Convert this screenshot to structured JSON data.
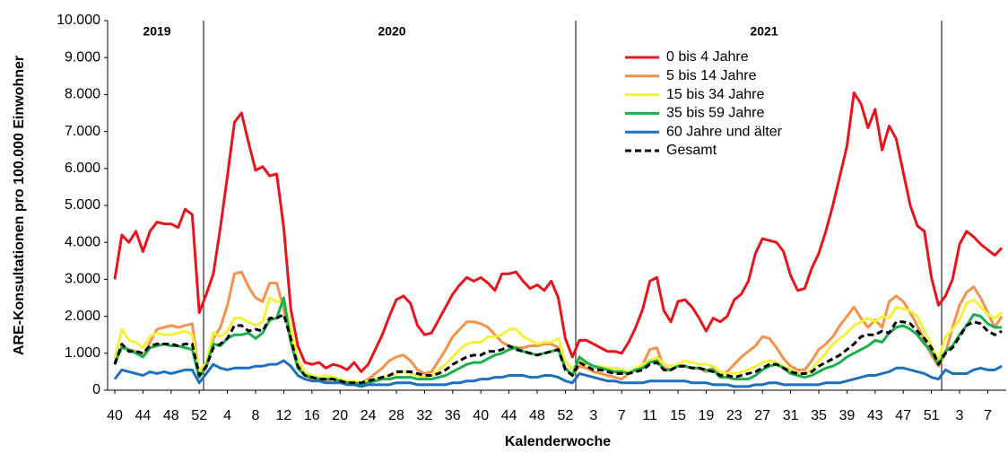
{
  "chart_data": {
    "type": "line",
    "y_label": "ARE-Konsultationen pro 100.000 Einwohner",
    "x_label": "Kalenderwoche",
    "annotations": [
      "2019",
      "2020",
      "2021"
    ],
    "categories": [
      "40",
      null,
      null,
      null,
      "44",
      null,
      null,
      null,
      "48",
      null,
      null,
      null,
      "52",
      null,
      null,
      null,
      "4",
      null,
      null,
      null,
      "8",
      null,
      null,
      null,
      "12",
      null,
      null,
      null,
      "16",
      null,
      null,
      null,
      "20",
      null,
      null,
      null,
      "24",
      null,
      null,
      null,
      "28",
      null,
      null,
      null,
      "32",
      null,
      null,
      null,
      "36",
      null,
      null,
      null,
      "40",
      null,
      null,
      null,
      "44",
      null,
      null,
      null,
      "48",
      null,
      null,
      null,
      "52",
      null,
      null,
      null,
      "3",
      null,
      null,
      null,
      "7",
      null,
      null,
      null,
      "11",
      null,
      null,
      null,
      "15",
      null,
      null,
      null,
      "19",
      null,
      null,
      null,
      "23",
      null,
      null,
      null,
      "27",
      null,
      null,
      null,
      "31",
      null,
      null,
      null,
      "35",
      null,
      null,
      null,
      "39",
      null,
      null,
      null,
      "43",
      null,
      null,
      null,
      "47",
      null,
      null,
      null,
      "51",
      null,
      null,
      null,
      "3",
      null,
      null,
      null,
      "7",
      null,
      null
    ],
    "ylim": [
      0,
      10000
    ],
    "yticks": [
      0,
      {
        "value": 1000,
        "label": "1.000"
      },
      {
        "value": 2000,
        "label": "2.000"
      },
      {
        "value": 3000,
        "label": "3.000"
      },
      {
        "value": 4000,
        "label": "4.000"
      },
      {
        "value": 5000,
        "label": "5.000"
      },
      {
        "value": 6000,
        "label": "6.000"
      },
      {
        "value": 7000,
        "label": "7.000"
      },
      {
        "value": 8000,
        "label": "8.000"
      },
      {
        "value": 9000,
        "label": "9.000"
      },
      {
        "value": 10000,
        "label": "10.000"
      }
    ],
    "grid": false,
    "legend": "upper right",
    "series": [
      {
        "name": "0 bis 4 Jahre",
        "color": "#e8141c",
        "values": [
          3000,
          4200,
          4000,
          4300,
          3750,
          4300,
          4550,
          4500,
          4500,
          4400,
          4900,
          4750,
          2100,
          2600,
          3150,
          4400,
          5800,
          7250,
          7500,
          6700,
          5950,
          6050,
          5800,
          5850,
          4400,
          2200,
          1200,
          750,
          700,
          750,
          600,
          700,
          650,
          550,
          750,
          500,
          700,
          1100,
          1500,
          2000,
          2450,
          2550,
          2350,
          1750,
          1500,
          1550,
          1900,
          2250,
          2600,
          2850,
          3050,
          2950,
          3050,
          2900,
          2700,
          3150,
          3150,
          3200,
          2950,
          2750,
          2850,
          2700,
          2950,
          2500,
          1400,
          900,
          1350,
          1350,
          1250,
          1150,
          1050,
          1050,
          1000,
          1300,
          1700,
          2200,
          2950,
          3050,
          2150,
          1850,
          2400,
          2450,
          2250,
          1950,
          1600,
          1950,
          1850,
          2000,
          2450,
          2600,
          2950,
          3700,
          4100,
          4050,
          4000,
          3750,
          3100,
          2700,
          2750,
          3300,
          3700,
          4300,
          5000,
          5800,
          6600,
          8050,
          7750,
          7100,
          7600,
          6500,
          7150,
          6800,
          5900,
          5000,
          4450,
          4300,
          3050,
          2300,
          2550,
          3000,
          3950,
          4300,
          4150,
          3950,
          3800,
          3650,
          3850
        ]
      },
      {
        "name": "5 bis 14 Jahre",
        "color": "#f4914a",
        "values": [
          700,
          1200,
          1100,
          1050,
          900,
          1300,
          1650,
          1700,
          1750,
          1700,
          1750,
          1800,
          400,
          600,
          1400,
          1700,
          2300,
          3150,
          3200,
          2800,
          2500,
          2400,
          2900,
          2900,
          2200,
          1300,
          650,
          400,
          300,
          250,
          250,
          300,
          200,
          200,
          150,
          200,
          300,
          450,
          600,
          800,
          900,
          950,
          800,
          550,
          450,
          500,
          800,
          1100,
          1450,
          1650,
          1850,
          1850,
          1800,
          1700,
          1500,
          1300,
          1200,
          1150,
          1150,
          1200,
          1200,
          1250,
          1250,
          1150,
          600,
          400,
          650,
          600,
          500,
          450,
          400,
          350,
          300,
          450,
          550,
          700,
          1100,
          1150,
          600,
          550,
          700,
          650,
          600,
          600,
          500,
          600,
          450,
          500,
          700,
          900,
          1050,
          1200,
          1450,
          1400,
          1150,
          850,
          650,
          550,
          550,
          800,
          1100,
          1250,
          1450,
          1750,
          2000,
          2250,
          1950,
          1700,
          1900,
          1700,
          2400,
          2550,
          2400,
          2100,
          1750,
          1350,
          950,
          650,
          1000,
          1700,
          2300,
          2650,
          2800,
          2500,
          2100,
          1700,
          2000
        ]
      },
      {
        "name": "15 bis 34 Jahre",
        "color": "#f2f23c",
        "values": [
          850,
          1650,
          1350,
          1300,
          1150,
          1450,
          1550,
          1500,
          1500,
          1550,
          1600,
          1500,
          500,
          750,
          1550,
          1450,
          1600,
          1950,
          1950,
          1850,
          1750,
          1850,
          2500,
          2400,
          2400,
          1700,
          800,
          500,
          400,
          350,
          400,
          350,
          300,
          250,
          250,
          200,
          250,
          300,
          350,
          400,
          450,
          500,
          450,
          400,
          350,
          400,
          550,
          700,
          900,
          1100,
          1250,
          1300,
          1300,
          1450,
          1450,
          1500,
          1650,
          1650,
          1450,
          1350,
          1250,
          1300,
          1300,
          1400,
          800,
          550,
          800,
          700,
          650,
          650,
          600,
          600,
          550,
          500,
          600,
          700,
          800,
          900,
          700,
          650,
          700,
          800,
          750,
          700,
          700,
          650,
          500,
          450,
          450,
          500,
          550,
          650,
          750,
          800,
          750,
          650,
          550,
          450,
          450,
          550,
          800,
          1000,
          1250,
          1400,
          1550,
          1750,
          1850,
          1950,
          1850,
          2000,
          1950,
          2250,
          2200,
          2150,
          2000,
          1600,
          1200,
          800,
          1450,
          1650,
          1900,
          2350,
          2450,
          2250,
          2050,
          1950,
          2100
        ]
      },
      {
        "name": "35 bis 59 Jahre",
        "color": "#1aae4f",
        "values": [
          750,
          1150,
          1100,
          1000,
          900,
          1150,
          1200,
          1250,
          1200,
          1200,
          1150,
          1100,
          350,
          650,
          1250,
          1200,
          1400,
          1500,
          1500,
          1550,
          1400,
          1550,
          1900,
          1950,
          2500,
          1300,
          600,
          400,
          350,
          300,
          300,
          300,
          250,
          200,
          200,
          150,
          200,
          250,
          300,
          300,
          350,
          350,
          350,
          300,
          300,
          300,
          350,
          400,
          500,
          600,
          700,
          750,
          750,
          850,
          950,
          1000,
          1100,
          1150,
          1050,
          1000,
          950,
          1000,
          1050,
          1100,
          600,
          400,
          900,
          750,
          650,
          600,
          550,
          500,
          500,
          450,
          550,
          600,
          750,
          800,
          550,
          550,
          650,
          650,
          600,
          600,
          550,
          550,
          350,
          350,
          300,
          300,
          300,
          400,
          550,
          650,
          700,
          600,
          450,
          400,
          350,
          400,
          500,
          600,
          650,
          750,
          900,
          1000,
          1100,
          1200,
          1350,
          1300,
          1550,
          1700,
          1750,
          1650,
          1500,
          1250,
          1050,
          700,
          1050,
          1200,
          1500,
          1750,
          2050,
          2000,
          1800,
          1700,
          1700
        ]
      },
      {
        "name": "60 Jahre und älter",
        "color": "#1f6fbf",
        "values": [
          300,
          550,
          500,
          450,
          400,
          500,
          450,
          500,
          450,
          500,
          550,
          550,
          200,
          450,
          700,
          600,
          550,
          600,
          600,
          600,
          650,
          650,
          700,
          700,
          800,
          650,
          400,
          300,
          250,
          250,
          200,
          200,
          200,
          150,
          150,
          100,
          150,
          150,
          150,
          150,
          200,
          200,
          200,
          150,
          150,
          150,
          150,
          150,
          200,
          200,
          250,
          250,
          300,
          300,
          350,
          350,
          400,
          400,
          400,
          350,
          350,
          400,
          400,
          350,
          250,
          200,
          450,
          400,
          350,
          300,
          250,
          250,
          200,
          200,
          200,
          200,
          250,
          250,
          250,
          250,
          250,
          250,
          200,
          200,
          200,
          150,
          150,
          150,
          100,
          100,
          100,
          150,
          150,
          200,
          200,
          150,
          150,
          150,
          150,
          150,
          150,
          200,
          200,
          200,
          250,
          300,
          350,
          400,
          400,
          450,
          500,
          600,
          600,
          550,
          500,
          450,
          350,
          300,
          550,
          450,
          450,
          450,
          550,
          600,
          550,
          550,
          650
        ]
      },
      {
        "name": "Gesamt",
        "color": "#000000",
        "line_style": "dashed",
        "values": [
          700,
          1250,
          1050,
          1050,
          1000,
          1200,
          1250,
          1250,
          1250,
          1200,
          1250,
          1250,
          400,
          650,
          1150,
          1250,
          1400,
          1750,
          1750,
          1600,
          1650,
          1600,
          1950,
          1950,
          2050,
          1400,
          650,
          400,
          350,
          300,
          300,
          300,
          250,
          200,
          200,
          200,
          250,
          300,
          350,
          400,
          500,
          500,
          500,
          450,
          400,
          400,
          450,
          550,
          700,
          800,
          900,
          950,
          950,
          1050,
          1050,
          1100,
          1200,
          1100,
          1050,
          1000,
          950,
          1000,
          1050,
          1100,
          550,
          400,
          750,
          650,
          550,
          550,
          500,
          450,
          450,
          450,
          500,
          550,
          700,
          750,
          550,
          550,
          650,
          650,
          600,
          600,
          550,
          500,
          400,
          400,
          350,
          400,
          450,
          500,
          600,
          700,
          700,
          600,
          500,
          450,
          450,
          500,
          650,
          750,
          850,
          950,
          1100,
          1250,
          1450,
          1500,
          1500,
          1600,
          1550,
          1850,
          1850,
          1800,
          1600,
          1400,
          1150,
          700,
          1000,
          1150,
          1450,
          1750,
          1850,
          1800,
          1600,
          1500,
          1600
        ]
      }
    ]
  }
}
